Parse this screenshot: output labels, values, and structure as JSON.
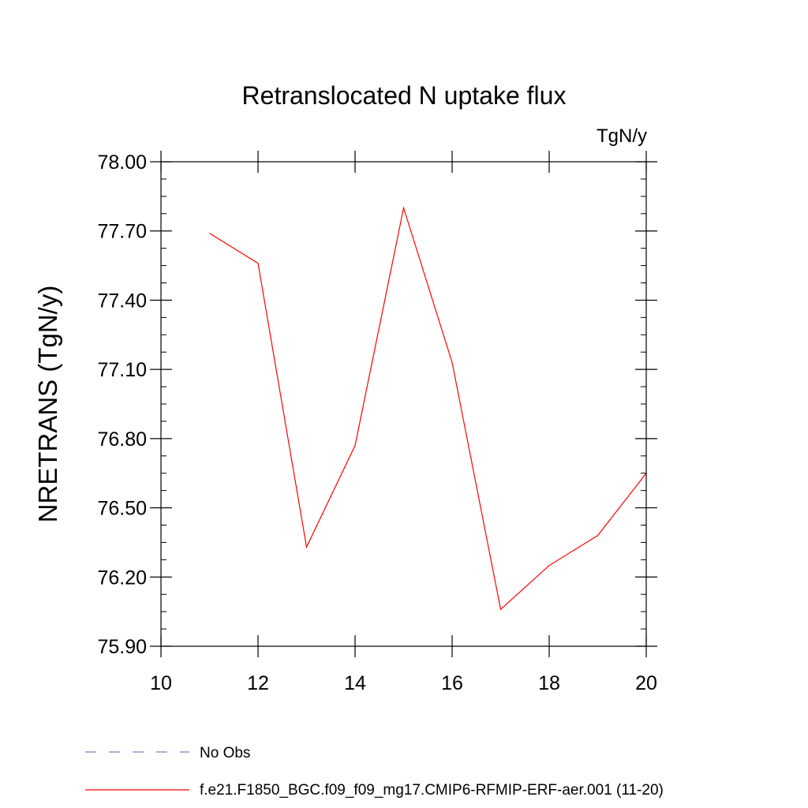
{
  "chart_data": {
    "type": "line",
    "title": "Retranslocated N uptake flux",
    "units": "TgN/y",
    "ylabel": "NRETRANS  (TgN/y)",
    "xlabel": "",
    "xlim": [
      10,
      20
    ],
    "ylim": [
      75.9,
      78.0
    ],
    "x_ticks": [
      10,
      12,
      14,
      16,
      18,
      20
    ],
    "x_tick_labels": [
      "10",
      "12",
      "14",
      "16",
      "18",
      "20"
    ],
    "y_ticks": [
      75.9,
      76.2,
      76.5,
      76.8,
      77.1,
      77.4,
      77.7,
      78.0
    ],
    "y_tick_labels": [
      "75.90",
      "76.20",
      "76.50",
      "76.80",
      "77.10",
      "77.40",
      "77.70",
      "78.00"
    ],
    "grid": false,
    "series": [
      {
        "name": "f.e21.F1850_BGC.f09_f09_mg17.CMIP6-RFMIP-ERF-aer.001 (11-20)",
        "color": "#ff0000",
        "style": "solid",
        "x": [
          11,
          12,
          13,
          14,
          15,
          16,
          17,
          18,
          19,
          20
        ],
        "values": [
          77.69,
          77.56,
          76.33,
          76.77,
          77.8,
          77.13,
          76.06,
          76.25,
          76.38,
          76.65
        ]
      }
    ],
    "legend": [
      {
        "label": "No Obs",
        "color": "#8080c0",
        "style": "dashed"
      },
      {
        "label": "f.e21.F1850_BGC.f09_f09_mg17.CMIP6-RFMIP-ERF-aer.001 (11-20)",
        "color": "#ff0000",
        "style": "solid"
      }
    ]
  }
}
